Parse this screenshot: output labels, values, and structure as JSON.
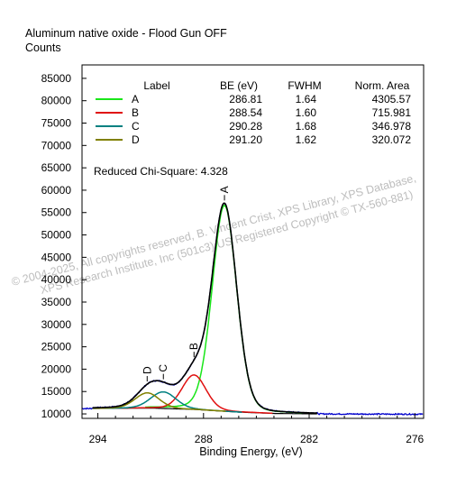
{
  "chart_data": {
    "type": "line",
    "title": "Aluminum native oxide - Flood Gun OFF",
    "ylabel": "Counts",
    "xlabel": "Binding Energy, (eV)",
    "xlim": [
      294.9,
      275.5
    ],
    "ylim": [
      9000,
      88000
    ],
    "x_ticks": [
      294,
      288,
      282,
      276
    ],
    "y_ticks": [
      10000,
      15000,
      20000,
      25000,
      30000,
      35000,
      40000,
      45000,
      50000,
      55000,
      60000,
      65000,
      70000,
      75000,
      80000,
      85000
    ],
    "legend": {
      "headers": [
        "Label",
        "BE (eV)",
        "FWHM",
        "Norm. Area"
      ],
      "rows": [
        {
          "label": "A",
          "be": "286.81",
          "fwhm": "1.64",
          "area": "4305.57",
          "color": "#19e619"
        },
        {
          "label": "B",
          "be": "288.54",
          "fwhm": "1.60",
          "area": "715.981",
          "color": "#e01010"
        },
        {
          "label": "C",
          "be": "290.28",
          "fwhm": "1.68",
          "area": "346.978",
          "color": "#008080"
        },
        {
          "label": "D",
          "be": "291.20",
          "fwhm": "1.62",
          "area": "320.072",
          "color": "#808000"
        }
      ]
    },
    "chi_square_text": "Reduced Chi-Square: 4.328",
    "peaks": [
      {
        "label": "A",
        "center": 286.81,
        "fwhm": 1.64,
        "height": 46000,
        "color": "#19e619"
      },
      {
        "label": "B",
        "center": 288.54,
        "fwhm": 1.6,
        "height": 7700,
        "color": "#e01010"
      },
      {
        "label": "C",
        "center": 290.28,
        "fwhm": 1.68,
        "height": 3700,
        "color": "#008080"
      },
      {
        "label": "D",
        "center": 291.2,
        "fwhm": 1.62,
        "height": 3400,
        "color": "#808000"
      }
    ],
    "background": [
      {
        "x": 294.9,
        "y": 11200
      },
      {
        "x": 291.0,
        "y": 11300
      },
      {
        "x": 288.5,
        "y": 11000
      },
      {
        "x": 286.0,
        "y": 10400
      },
      {
        "x": 284.0,
        "y": 10100
      },
      {
        "x": 281.5,
        "y": 10000
      }
    ],
    "data_color": "#0000cc",
    "envelope_color": "#000000",
    "watermark": [
      "©  2004-2025,  All copyrights reserved,  B. Vincent Crist,  XPS Library, XPS Database,",
      "XPS Research Institute, Inc (501c3)     US Registered Copyright © TX-560-881)"
    ]
  }
}
